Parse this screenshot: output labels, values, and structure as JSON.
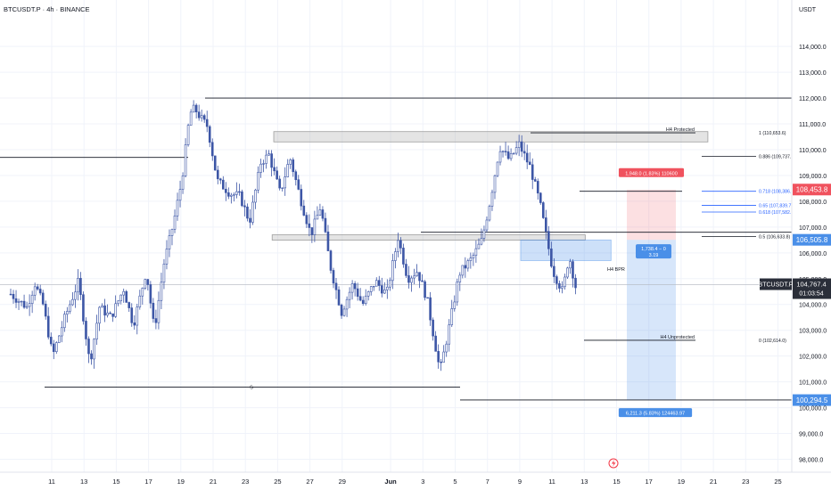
{
  "header": {
    "symbol_title": "BTCUSDT.P · 4h · BINANCE",
    "currency": "USDT"
  },
  "price_axis": {
    "ylim": [
      97500,
      115800
    ],
    "ticks": [
      "114,000.0",
      "113,000.0",
      "112,000.0",
      "111,000.0",
      "110,000.0",
      "109,000.0",
      "108,000.0",
      "107,000.0",
      "106,000.0",
      "105,000.0",
      "104,000.0",
      "103,000.0",
      "102,000.0",
      "101,000.0",
      "100,000.0",
      "99,000.0",
      "98,000.0"
    ],
    "tick_values": [
      114000,
      113000,
      112000,
      111000,
      110000,
      109000,
      108000,
      107000,
      106000,
      105000,
      104000,
      103000,
      102000,
      101000,
      100000,
      99000,
      98000
    ]
  },
  "time_axis": {
    "labels": [
      "11",
      "13",
      "15",
      "17",
      "19",
      "21",
      "23",
      "25",
      "27",
      "29",
      "Jun",
      "3",
      "5",
      "7",
      "9",
      "11",
      "13",
      "15",
      "17",
      "19",
      "21",
      "23",
      "25"
    ],
    "day_index": [
      0,
      2,
      4,
      6,
      8,
      10,
      12,
      14,
      16,
      18,
      21,
      23,
      25,
      27,
      29,
      31,
      33,
      35,
      37,
      39,
      41,
      43,
      45
    ],
    "total_days": 46
  },
  "chart_data": {
    "type": "candlestick",
    "symbol": "BTCUSDT.P",
    "timeframe": "4h",
    "exchange": "BINANCE",
    "anchors": [
      [
        0.0,
        104400
      ],
      [
        1.0,
        103900
      ],
      [
        1.5,
        104800
      ],
      [
        2.0,
        104000
      ],
      [
        2.6,
        102000
      ],
      [
        3.3,
        103400
      ],
      [
        4.2,
        104900
      ],
      [
        4.9,
        101700
      ],
      [
        5.5,
        103900
      ],
      [
        6.2,
        103500
      ],
      [
        7.0,
        104600
      ],
      [
        7.6,
        103200
      ],
      [
        8.4,
        105300
      ],
      [
        8.9,
        103000
      ],
      [
        9.5,
        105600
      ],
      [
        10.1,
        107200
      ],
      [
        10.6,
        108800
      ],
      [
        11.1,
        111400
      ],
      [
        11.4,
        111600
      ],
      [
        11.8,
        111200
      ],
      [
        12.2,
        110900
      ],
      [
        12.8,
        108800
      ],
      [
        13.6,
        108300
      ],
      [
        14.2,
        108200
      ],
      [
        14.8,
        107200
      ],
      [
        15.5,
        109500
      ],
      [
        16.0,
        109800
      ],
      [
        16.7,
        108300
      ],
      [
        17.3,
        109700
      ],
      [
        18.0,
        108000
      ],
      [
        18.6,
        106700
      ],
      [
        19.2,
        107800
      ],
      [
        19.8,
        105500
      ],
      [
        20.5,
        103700
      ],
      [
        21.2,
        104800
      ],
      [
        21.8,
        104000
      ],
      [
        22.6,
        104900
      ],
      [
        23.3,
        104400
      ],
      [
        24.0,
        106600
      ],
      [
        24.6,
        105000
      ],
      [
        25.2,
        105300
      ],
      [
        25.8,
        104200
      ],
      [
        26.6,
        101400
      ],
      [
        27.1,
        102900
      ],
      [
        27.8,
        105200
      ],
      [
        28.6,
        105800
      ],
      [
        29.2,
        106500
      ],
      [
        29.7,
        108000
      ],
      [
        30.3,
        110100
      ],
      [
        30.9,
        109600
      ],
      [
        31.5,
        110200
      ],
      [
        32.2,
        109300
      ],
      [
        32.8,
        107900
      ],
      [
        33.2,
        106600
      ],
      [
        33.6,
        105300
      ],
      [
        34.2,
        104500
      ],
      [
        34.6,
        105900
      ],
      [
        35.0,
        104700
      ]
    ],
    "zones": [
      {
        "low": 110300,
        "high": 110700
      },
      {
        "low": 106500,
        "high": 106700
      },
      {
        "low": 105700,
        "high": 106500
      }
    ],
    "levels": {
      "range_high": 112000,
      "range_low": 100550,
      "bos_low": 100300,
      "old_high": 109700,
      "sss_level": 100800
    },
    "fib": [
      {
        "label": "1 (110,653.6)",
        "value": 110653.6
      },
      {
        "label": "0.886 (109,737.1)",
        "value": 109737.1
      },
      {
        "label": "0.718 (108,386.4)",
        "value": 108386.4
      },
      {
        "label": "0.65 (107,839.7)",
        "value": 107839.7
      },
      {
        "label": "0.618 (107,582.5)",
        "value": 107582.5
      },
      {
        "label": "0.5 (106,633.8)",
        "value": 106633.8
      },
      {
        "label": "0 (102,614.0)",
        "value": 102614.0
      }
    ],
    "annotations": {
      "h4_protected": "H4 Protected",
      "h4_unprotected": "H4 Unprotected",
      "h4_bpr": "H4 BPR",
      "s_marker": "S"
    },
    "position": {
      "type": "short",
      "stop": 108453.8,
      "entry": 106505.8,
      "target": 100294.5,
      "risk_label": "1,948.0 (1.83%) 110600",
      "reward_label": "6,211.3 (5.83%) 124463.97",
      "info_line1": "1,738.4 − 0",
      "info_line2": "3.19"
    },
    "last_price": 104767.4,
    "last_price_label": "104,767.4",
    "countdown": "01:03:54",
    "price_tags": {
      "stop": "108,453.8",
      "entry": "106,505.8",
      "target": "100,294.5"
    },
    "colors": {
      "up": "#ffffff",
      "down": "#3d56a6",
      "wick": "#3d56a6",
      "risk": "#f0525e",
      "reward": "#4a8fe8",
      "zone": "#c8c8c8",
      "last_price_bg": "#2a2e39",
      "fib_blue": "#2962ff"
    }
  }
}
